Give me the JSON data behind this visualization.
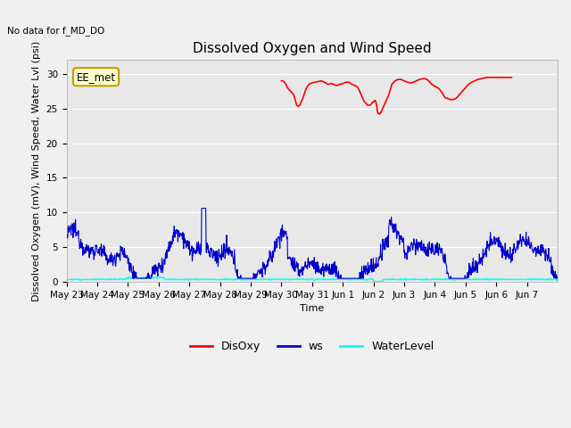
{
  "title": "Dissolved Oxygen and Wind Speed",
  "ylabel": "Dissolved Oxygen (mV), Wind Speed, Water Lvl (psi)",
  "xlabel": "Time",
  "no_data_text": "No data for f_MD_DO",
  "annotation_text": "EE_met",
  "ylim": [
    0,
    32
  ],
  "yticks": [
    0,
    5,
    10,
    15,
    20,
    25,
    30
  ],
  "xlim_start": 0,
  "xlim_end": 16,
  "xtick_labels": [
    "May 23",
    "May 24",
    "May 25",
    "May 26",
    "May 27",
    "May 28",
    "May 29",
    "May 30",
    "May 31",
    "Jun 1",
    "Jun 2",
    "Jun 3",
    "Jun 4",
    "Jun 5",
    "Jun 6",
    "Jun 7"
  ],
  "bg_color": "#e8e8e8",
  "fig_color": "#f0f0f0",
  "disoxy_color": "#ff0000",
  "ws_color": "#0000cc",
  "wl_color": "#00ffff",
  "legend_labels": [
    "DisOxy",
    "ws",
    "WaterLevel"
  ],
  "title_fontsize": 11,
  "axis_label_fontsize": 8,
  "tick_fontsize": 7.5,
  "legend_fontsize": 9
}
